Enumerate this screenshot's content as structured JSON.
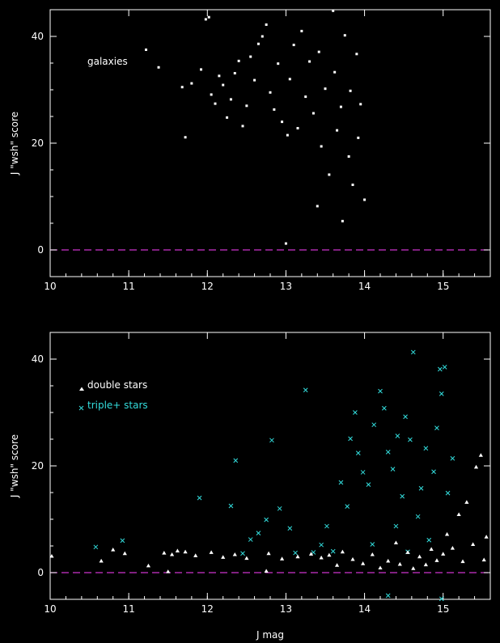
{
  "chart_data": [
    {
      "type": "scatter",
      "xlabel": "",
      "ylabel": "J \"wsh\" score",
      "xlim": [
        10,
        15.6
      ],
      "ylim": [
        -5,
        45
      ],
      "xticks": [
        10,
        11,
        12,
        13,
        14,
        15
      ],
      "yticks": [
        0,
        20,
        40
      ],
      "reference_line": {
        "y": 0,
        "color": "#cc33cc",
        "style": "dashed"
      },
      "annotation": "galaxies",
      "series": [
        {
          "color": "#ffffff",
          "marker": "dot",
          "points": [
            [
              11.22,
              37.5
            ],
            [
              11.38,
              34.2
            ],
            [
              11.72,
              21.1
            ],
            [
              11.68,
              30.5
            ],
            [
              11.8,
              31.2
            ],
            [
              11.92,
              33.8
            ],
            [
              11.98,
              43.2
            ],
            [
              12.02,
              43.6
            ],
            [
              12.05,
              29.1
            ],
            [
              12.1,
              27.4
            ],
            [
              12.15,
              32.6
            ],
            [
              12.2,
              30.9
            ],
            [
              12.25,
              24.8
            ],
            [
              12.3,
              28.2
            ],
            [
              12.35,
              33.1
            ],
            [
              12.4,
              35.4
            ],
            [
              12.45,
              23.2
            ],
            [
              12.5,
              27.0
            ],
            [
              12.55,
              36.2
            ],
            [
              12.6,
              31.8
            ],
            [
              12.65,
              38.6
            ],
            [
              12.7,
              40.0
            ],
            [
              12.75,
              42.2
            ],
            [
              12.8,
              29.5
            ],
            [
              12.85,
              26.3
            ],
            [
              12.9,
              34.9
            ],
            [
              12.95,
              24.0
            ],
            [
              13.0,
              1.2
            ],
            [
              13.02,
              21.5
            ],
            [
              13.05,
              32.0
            ],
            [
              13.1,
              38.4
            ],
            [
              13.15,
              22.8
            ],
            [
              13.2,
              41.0
            ],
            [
              13.25,
              28.7
            ],
            [
              13.3,
              35.3
            ],
            [
              13.35,
              25.6
            ],
            [
              13.4,
              8.2
            ],
            [
              13.42,
              37.1
            ],
            [
              13.45,
              19.4
            ],
            [
              13.5,
              30.2
            ],
            [
              13.55,
              14.1
            ],
            [
              13.6,
              44.8
            ],
            [
              13.62,
              33.3
            ],
            [
              13.65,
              22.4
            ],
            [
              13.7,
              26.8
            ],
            [
              13.72,
              5.4
            ],
            [
              13.75,
              40.2
            ],
            [
              13.8,
              17.5
            ],
            [
              13.82,
              29.8
            ],
            [
              13.85,
              12.2
            ],
            [
              13.9,
              36.7
            ],
            [
              13.92,
              21.0
            ],
            [
              13.95,
              27.3
            ],
            [
              14.0,
              9.4
            ]
          ]
        }
      ]
    },
    {
      "type": "scatter",
      "xlabel": "J mag",
      "ylabel": "J \"wsh\" score",
      "xlim": [
        10,
        15.6
      ],
      "ylim": [
        -5,
        45
      ],
      "xticks": [
        10,
        11,
        12,
        13,
        14,
        15
      ],
      "yticks": [
        0,
        20,
        40
      ],
      "reference_line": {
        "y": 0,
        "color": "#cc33cc",
        "style": "dashed"
      },
      "series": [
        {
          "name": "double stars",
          "color": "#ffffff",
          "marker": "triangle",
          "points": [
            [
              10.02,
              3.1
            ],
            [
              10.65,
              2.2
            ],
            [
              10.8,
              4.3
            ],
            [
              10.95,
              3.6
            ],
            [
              11.25,
              1.3
            ],
            [
              11.45,
              3.7
            ],
            [
              11.5,
              0.2
            ],
            [
              11.55,
              3.4
            ],
            [
              11.62,
              4.1
            ],
            [
              11.72,
              3.9
            ],
            [
              11.85,
              3.2
            ],
            [
              12.05,
              3.8
            ],
            [
              12.2,
              2.9
            ],
            [
              12.35,
              3.4
            ],
            [
              12.5,
              2.7
            ],
            [
              12.75,
              0.3
            ],
            [
              12.78,
              3.6
            ],
            [
              12.95,
              2.6
            ],
            [
              13.15,
              3.0
            ],
            [
              13.32,
              3.5
            ],
            [
              13.45,
              2.8
            ],
            [
              13.55,
              3.3
            ],
            [
              13.65,
              1.4
            ],
            [
              13.72,
              3.9
            ],
            [
              13.85,
              2.5
            ],
            [
              13.98,
              1.7
            ],
            [
              14.1,
              3.4
            ],
            [
              14.2,
              0.9
            ],
            [
              14.3,
              2.2
            ],
            [
              14.4,
              5.6
            ],
            [
              14.45,
              1.6
            ],
            [
              14.55,
              3.8
            ],
            [
              14.62,
              0.8
            ],
            [
              14.7,
              3.0
            ],
            [
              14.78,
              1.5
            ],
            [
              14.85,
              4.4
            ],
            [
              14.92,
              2.3
            ],
            [
              15.0,
              3.5
            ],
            [
              15.05,
              7.2
            ],
            [
              15.12,
              4.6
            ],
            [
              15.2,
              10.9
            ],
            [
              15.25,
              2.1
            ],
            [
              15.3,
              13.2
            ],
            [
              15.38,
              5.3
            ],
            [
              15.42,
              19.8
            ],
            [
              15.48,
              22.0
            ],
            [
              15.52,
              2.4
            ],
            [
              15.55,
              6.7
            ]
          ]
        },
        {
          "name": "triple+ stars",
          "color": "#33dddd",
          "marker": "x",
          "points": [
            [
              10.58,
              4.8
            ],
            [
              10.92,
              6.0
            ],
            [
              11.9,
              14.0
            ],
            [
              12.3,
              12.5
            ],
            [
              12.36,
              21.0
            ],
            [
              12.45,
              3.6
            ],
            [
              12.55,
              6.2
            ],
            [
              12.65,
              7.4
            ],
            [
              12.75,
              9.9
            ],
            [
              12.82,
              24.8
            ],
            [
              12.92,
              12.0
            ],
            [
              13.05,
              8.3
            ],
            [
              13.12,
              3.7
            ],
            [
              13.25,
              34.2
            ],
            [
              13.35,
              3.8
            ],
            [
              13.45,
              5.2
            ],
            [
              13.52,
              8.7
            ],
            [
              13.6,
              4.0
            ],
            [
              13.7,
              16.9
            ],
            [
              13.78,
              12.4
            ],
            [
              13.82,
              25.1
            ],
            [
              13.88,
              30.0
            ],
            [
              13.92,
              22.4
            ],
            [
              13.98,
              18.8
            ],
            [
              14.05,
              16.5
            ],
            [
              14.12,
              27.7
            ],
            [
              14.2,
              34.0
            ],
            [
              14.25,
              30.8
            ],
            [
              14.3,
              22.6
            ],
            [
              14.36,
              19.4
            ],
            [
              14.42,
              25.6
            ],
            [
              14.48,
              14.3
            ],
            [
              14.52,
              29.2
            ],
            [
              14.58,
              24.9
            ],
            [
              14.62,
              41.3
            ],
            [
              14.68,
              10.5
            ],
            [
              14.72,
              15.8
            ],
            [
              14.78,
              23.3
            ],
            [
              14.82,
              6.1
            ],
            [
              14.88,
              18.9
            ],
            [
              14.92,
              27.1
            ],
            [
              14.96,
              38.1
            ],
            [
              14.98,
              33.5
            ],
            [
              15.02,
              38.5
            ],
            [
              15.06,
              14.9
            ],
            [
              15.12,
              21.4
            ],
            [
              14.3,
              -4.3
            ],
            [
              14.98,
              -4.9
            ],
            [
              14.1,
              5.3
            ],
            [
              14.4,
              8.7
            ],
            [
              14.55,
              3.9
            ]
          ]
        }
      ]
    }
  ],
  "legend_order": [
    "double stars",
    "triple+ stars"
  ]
}
